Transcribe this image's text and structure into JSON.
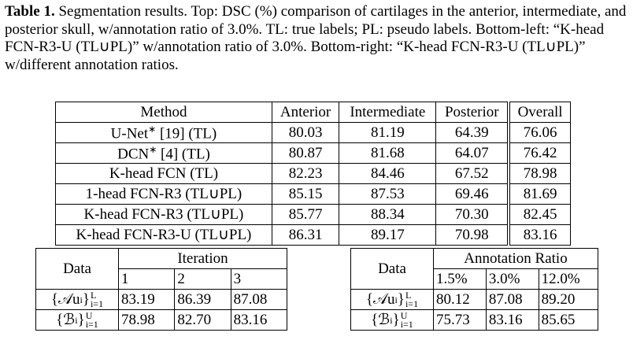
{
  "caption": {
    "label": "Table 1.",
    "text": "Segmentation results. Top: DSC (%) comparison of cartilages in the anterior, intermediate, and posterior skull, w/annotation ratio of 3.0%. TL: true labels; PL: pseudo labels. Bottom-left: “K-head FCN-R3-U (TL∪PL)” w/annotation ratio of 3.0%. Bottom-right: “K-head FCN-R3-U (TL∪PL)” w/different annotation ratios."
  },
  "main_table": {
    "header": [
      "Method",
      "Anterior",
      "Intermediate",
      "Posterior",
      "Overall"
    ],
    "rows": [
      {
        "method": "U-Net",
        "method_sup": "∗",
        "method_rest": " [19] (TL)",
        "values": [
          "80.03",
          "81.19",
          "64.39",
          "76.06"
        ]
      },
      {
        "method": "DCN",
        "method_sup": "∗",
        "method_rest": " [4] (TL)",
        "values": [
          "80.87",
          "81.68",
          "64.07",
          "76.42"
        ]
      },
      {
        "method": "K-head FCN (TL)",
        "values": [
          "82.23",
          "84.46",
          "67.52",
          "78.98"
        ]
      },
      {
        "method": "1-head FCN-R3 (TL∪PL)",
        "values": [
          "85.15",
          "87.53",
          "69.46",
          "81.69"
        ]
      },
      {
        "method": "K-head FCN-R3 (TL∪PL)",
        "values": [
          "85.77",
          "88.34",
          "70.30",
          "82.45"
        ]
      },
      {
        "method": "K-head FCN-R3-U (TL∪PL)",
        "values": [
          "86.31",
          "89.17",
          "70.98",
          "83.16"
        ]
      }
    ]
  },
  "bottom_left": {
    "data_header": "Data",
    "group_header": "Iteration",
    "subheaders": [
      "1",
      "2",
      "3"
    ],
    "rows": [
      {
        "label": {
          "open": "{𝒜u",
          "inner_sub": "i",
          "close": "}",
          "sup": "L",
          "sub": "i=1"
        },
        "values": [
          "83.19",
          "86.39",
          "87.08"
        ]
      },
      {
        "label": {
          "open": "{ℬ",
          "inner_sub": "i",
          "close": "}",
          "sup": "U",
          "sub": "i=1"
        },
        "values": [
          "78.98",
          "82.70",
          "83.16"
        ]
      }
    ]
  },
  "bottom_right": {
    "data_header": "Data",
    "group_header": "Annotation Ratio",
    "subheaders": [
      "1.5%",
      "3.0%",
      "12.0%"
    ],
    "rows": [
      {
        "label": {
          "open": "{𝒜u",
          "inner_sub": "i",
          "close": "}",
          "sup": "L",
          "sub": "i=1"
        },
        "values": [
          "80.12",
          "87.08",
          "89.20"
        ]
      },
      {
        "label": {
          "open": "{ℬ",
          "inner_sub": "i",
          "close": "}",
          "sup": "U",
          "sub": "i=1"
        },
        "values": [
          "75.73",
          "83.16",
          "85.65"
        ]
      }
    ]
  }
}
